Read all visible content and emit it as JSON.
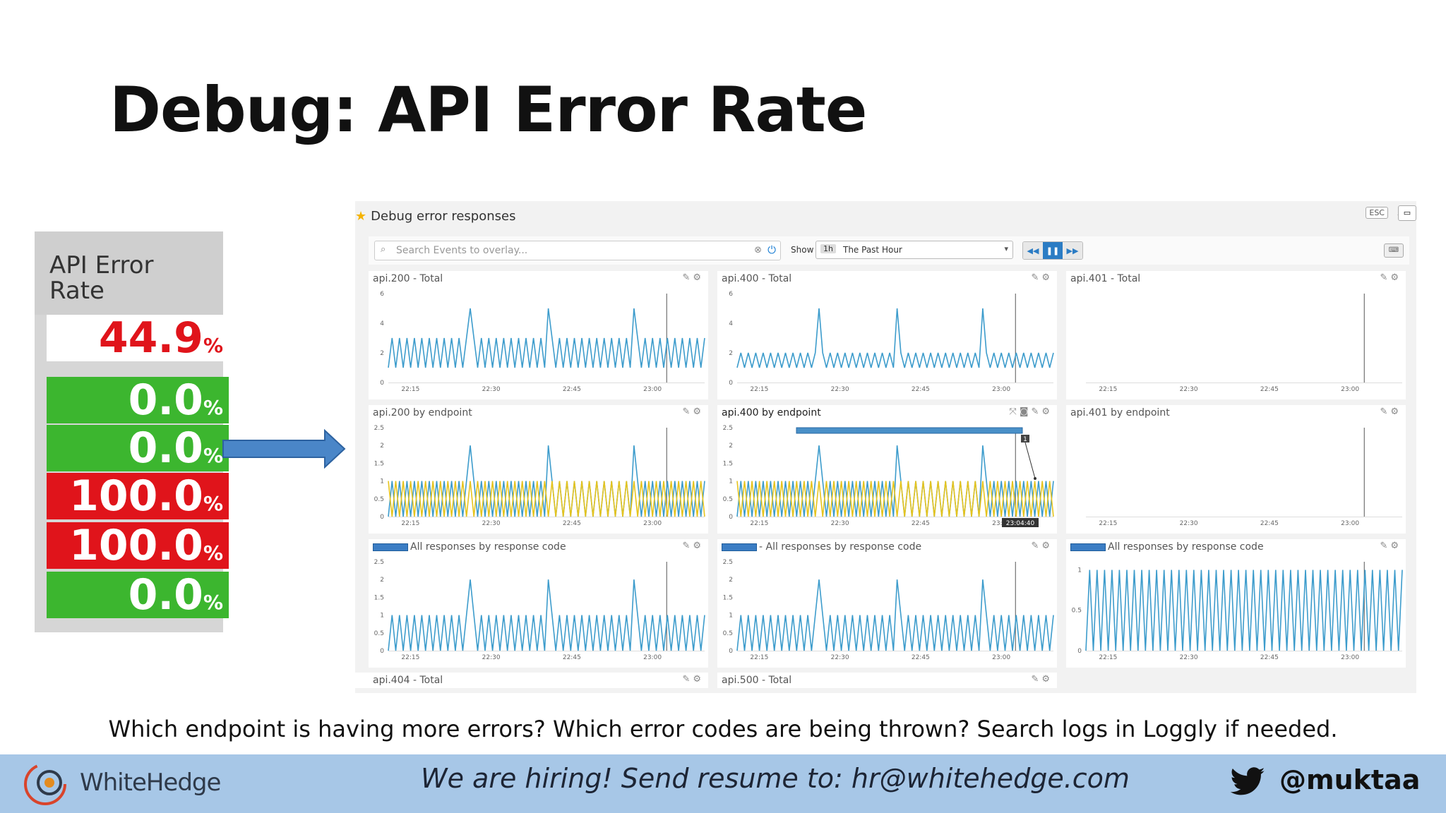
{
  "slide": {
    "title": "Debug: API Error Rate",
    "caption": "Which endpoint is having more errors? Which error codes are being thrown? Search logs in Loggly if needed."
  },
  "error_panel": {
    "heading": "API Error Rate",
    "tiles": [
      {
        "value": "44.9",
        "unit": "%",
        "style": "white"
      },
      {
        "value": "0.0",
        "unit": "%",
        "style": "green"
      },
      {
        "value": "0.0",
        "unit": "%",
        "style": "green"
      },
      {
        "value": "100.0",
        "unit": "%",
        "style": "red"
      },
      {
        "value": "100.0",
        "unit": "%",
        "style": "red"
      },
      {
        "value": "0.0",
        "unit": "%",
        "style": "green"
      }
    ],
    "colors": {
      "green": "#3cb62f",
      "red": "#e0141b"
    }
  },
  "dashboard": {
    "title": "Debug error responses",
    "esc_label": "ESC",
    "separator": "/",
    "search_placeholder": "Search Events to overlay...",
    "show_label": "Show",
    "range_short": "1h",
    "range_label": "The Past Hour",
    "panels": [
      {
        "title": "api.200 - Total"
      },
      {
        "title": "api.400 - Total"
      },
      {
        "title": "api.401 - Total"
      },
      {
        "title": "api.200 by endpoint"
      },
      {
        "title": "api.400 by endpoint"
      },
      {
        "title": "api.401 by endpoint"
      },
      {
        "title": "All responses by response code"
      },
      {
        "title": "- All responses by response code"
      },
      {
        "title": "All responses by response code"
      },
      {
        "title": "api.404 - Total"
      },
      {
        "title": "api.500 - Total"
      }
    ],
    "x_ticks": [
      "22:15",
      "22:30",
      "22:45",
      "23:00"
    ],
    "tooltip": {
      "badge": "1",
      "time": "23:04:40"
    },
    "colors": {
      "series_blue": "#3d9ccc",
      "series_yellow": "#e6c41d",
      "series_purple": "#8a6fc9"
    }
  },
  "chart_data": [
    {
      "type": "line",
      "title": "api.200 - Total",
      "y_ticks": [
        "0",
        "2",
        "4",
        "6"
      ],
      "x_ticks": [
        "22:15",
        "22:30",
        "22:45",
        "23:00"
      ],
      "ylim": [
        0,
        6
      ],
      "series": [
        {
          "values": [
            1,
            3,
            1,
            3,
            1,
            3,
            1,
            3,
            1,
            3,
            1,
            3,
            1,
            3,
            1,
            3,
            1,
            3,
            1,
            3,
            1,
            3,
            5,
            3,
            1,
            3,
            1,
            3,
            1,
            3,
            1,
            3,
            1,
            3,
            1,
            3,
            1,
            3,
            1,
            3,
            1,
            3,
            1,
            5,
            3,
            1,
            3,
            1,
            3,
            1,
            3,
            1,
            3,
            1,
            3,
            1,
            3,
            1,
            3,
            1,
            3,
            1,
            3,
            1,
            3,
            1,
            5,
            3,
            1,
            3,
            1,
            3,
            1,
            3,
            1,
            3,
            1,
            3,
            1,
            3,
            1,
            3,
            1,
            3,
            1,
            3
          ]
        }
      ]
    },
    {
      "type": "line",
      "title": "api.400 - Total",
      "y_ticks": [
        "0",
        "2",
        "4",
        "6"
      ],
      "x_ticks": [
        "22:15",
        "22:30",
        "22:45",
        "23:00"
      ],
      "ylim": [
        0,
        6
      ],
      "series": [
        {
          "values": [
            1,
            2,
            1,
            2,
            1,
            2,
            1,
            2,
            1,
            2,
            1,
            2,
            1,
            2,
            1,
            2,
            1,
            2,
            1,
            2,
            1,
            2,
            5,
            2,
            1,
            2,
            1,
            2,
            1,
            2,
            1,
            2,
            1,
            2,
            1,
            2,
            1,
            2,
            1,
            2,
            1,
            2,
            1,
            5,
            2,
            1,
            2,
            1,
            2,
            1,
            2,
            1,
            2,
            1,
            2,
            1,
            2,
            1,
            2,
            1,
            2,
            1,
            2,
            1,
            2,
            1,
            5,
            2,
            1,
            2,
            1,
            2,
            1,
            2,
            1,
            2,
            1,
            2,
            1,
            2,
            1,
            2,
            1,
            2,
            1,
            2
          ]
        }
      ]
    },
    {
      "type": "line",
      "title": "api.401 - Total",
      "x_ticks": [
        "22:15",
        "22:30",
        "22:45",
        "23:00"
      ],
      "series": []
    },
    {
      "type": "line",
      "title": "api.200 by endpoint",
      "y_ticks": [
        "0",
        "0.5",
        "1",
        "1.5",
        "2",
        "2.5"
      ],
      "x_ticks": [
        "22:15",
        "22:30",
        "22:45",
        "23:00"
      ],
      "ylim": [
        0,
        2.5
      ],
      "series": [
        {
          "values": [
            0,
            1,
            0,
            1,
            0,
            1,
            0,
            1,
            0,
            1,
            0,
            1,
            0,
            1,
            0,
            1,
            0,
            1,
            0,
            1,
            0,
            1,
            2,
            1,
            0,
            1,
            0,
            1,
            0,
            1,
            0,
            1,
            0,
            1,
            0,
            1,
            0,
            1,
            0,
            1,
            0,
            1,
            0,
            2,
            1,
            0,
            1,
            0,
            1,
            0,
            1,
            0,
            1,
            0,
            1,
            0,
            1,
            0,
            1,
            0,
            1,
            0,
            1,
            0,
            1,
            0,
            2,
            1,
            0,
            1,
            0,
            1,
            0,
            1,
            0,
            1,
            0,
            1,
            0,
            1,
            0,
            1,
            0,
            1,
            0,
            1
          ]
        },
        {
          "values": [
            1,
            0,
            1,
            0,
            1,
            0,
            1,
            0,
            1,
            0,
            1,
            0,
            1,
            0,
            1,
            0,
            1,
            0,
            1,
            0,
            1,
            0,
            1,
            0,
            1,
            0,
            1,
            0,
            1,
            0,
            1,
            0,
            1,
            0,
            1,
            0,
            1,
            0,
            1,
            0,
            1,
            0,
            1,
            0,
            1,
            0,
            1,
            0,
            1,
            0,
            1,
            0,
            1,
            0,
            1,
            0,
            1,
            0,
            1,
            0,
            1,
            0,
            1,
            0,
            1,
            0,
            1,
            0,
            1,
            0,
            1,
            0,
            1,
            0,
            1,
            0,
            1,
            0,
            1,
            0,
            1,
            0,
            1,
            0,
            1,
            0
          ]
        }
      ]
    },
    {
      "type": "line",
      "title": "api.400 by endpoint",
      "y_ticks": [
        "0",
        "0.5",
        "1",
        "1.5",
        "2",
        "2.5"
      ],
      "x_ticks": [
        "22:15",
        "22:30",
        "22:45",
        "23:00"
      ],
      "ylim": [
        0,
        2.5
      ],
      "series": [
        {
          "values": [
            0,
            1,
            0,
            1,
            0,
            1,
            0,
            1,
            0,
            1,
            0,
            1,
            0,
            1,
            0,
            1,
            0,
            1,
            0,
            1,
            0,
            1,
            2,
            1,
            0,
            1,
            0,
            1,
            0,
            1,
            0,
            1,
            0,
            1,
            0,
            1,
            0,
            1,
            0,
            1,
            0,
            1,
            0,
            2,
            1,
            0,
            1,
            0,
            1,
            0,
            1,
            0,
            1,
            0,
            1,
            0,
            1,
            0,
            1,
            0,
            1,
            0,
            1,
            0,
            1,
            0,
            2,
            1,
            0,
            1,
            0,
            1,
            0,
            1,
            0,
            1,
            0,
            1,
            0,
            1,
            0,
            1,
            0,
            1,
            0,
            1
          ]
        },
        {
          "values": [
            1,
            0,
            1,
            0,
            1,
            0,
            1,
            0,
            1,
            0,
            1,
            0,
            1,
            0,
            1,
            0,
            1,
            0,
            1,
            0,
            1,
            0,
            1,
            0,
            1,
            0,
            1,
            0,
            1,
            0,
            1,
            0,
            1,
            0,
            1,
            0,
            1,
            0,
            1,
            0,
            1,
            0,
            1,
            0,
            1,
            0,
            1,
            0,
            1,
            0,
            1,
            0,
            1,
            0,
            1,
            0,
            1,
            0,
            1,
            0,
            1,
            0,
            1,
            0,
            1,
            0,
            1,
            0,
            1,
            0,
            1,
            0,
            1,
            0,
            1,
            0,
            1,
            0,
            1,
            0,
            1,
            0,
            1,
            0,
            1,
            0
          ]
        }
      ]
    },
    {
      "type": "line",
      "title": "api.401 by endpoint",
      "x_ticks": [
        "22:15",
        "22:30",
        "22:45",
        "23:00"
      ],
      "series": []
    },
    {
      "type": "line",
      "title": "All responses by response code",
      "y_ticks": [
        "0",
        "0.5",
        "1",
        "1.5",
        "2",
        "2.5"
      ],
      "x_ticks": [
        "22:15",
        "22:30",
        "22:45",
        "23:00"
      ],
      "ylim": [
        0,
        2.5
      ],
      "series": [
        {
          "values": [
            0,
            1,
            0,
            1,
            0,
            1,
            0,
            1,
            0,
            1,
            0,
            1,
            0,
            1,
            0,
            1,
            0,
            1,
            0,
            1,
            0,
            1,
            2,
            1,
            0,
            1,
            0,
            1,
            0,
            1,
            0,
            1,
            0,
            1,
            0,
            1,
            0,
            1,
            0,
            1,
            0,
            1,
            0,
            2,
            1,
            0,
            1,
            0,
            1,
            0,
            1,
            0,
            1,
            0,
            1,
            0,
            1,
            0,
            1,
            0,
            1,
            0,
            1,
            0,
            1,
            0,
            2,
            1,
            0,
            1,
            0,
            1,
            0,
            1,
            0,
            1,
            0,
            1,
            0,
            1,
            0,
            1,
            0,
            1,
            0,
            1
          ]
        }
      ]
    },
    {
      "type": "line",
      "title": "- All responses by response code",
      "y_ticks": [
        "0",
        "0.5",
        "1",
        "1.5",
        "2",
        "2.5"
      ],
      "x_ticks": [
        "22:15",
        "22:30",
        "22:45",
        "23:00"
      ],
      "ylim": [
        0,
        2.5
      ],
      "series": [
        {
          "values": [
            0,
            1,
            0,
            1,
            0,
            1,
            0,
            1,
            0,
            1,
            0,
            1,
            0,
            1,
            0,
            1,
            0,
            1,
            0,
            1,
            0,
            1,
            2,
            1,
            0,
            1,
            0,
            1,
            0,
            1,
            0,
            1,
            0,
            1,
            0,
            1,
            0,
            1,
            0,
            1,
            0,
            1,
            0,
            2,
            1,
            0,
            1,
            0,
            1,
            0,
            1,
            0,
            1,
            0,
            1,
            0,
            1,
            0,
            1,
            0,
            1,
            0,
            1,
            0,
            1,
            0,
            2,
            1,
            0,
            1,
            0,
            1,
            0,
            1,
            0,
            1,
            0,
            1,
            0,
            1,
            0,
            1,
            0,
            1,
            0,
            1
          ]
        }
      ]
    },
    {
      "type": "line",
      "title": "All responses by response code",
      "y_ticks": [
        "0",
        "0.5",
        "1"
      ],
      "x_ticks": [
        "22:15",
        "22:30",
        "22:45",
        "23:00"
      ],
      "ylim": [
        0,
        1.1
      ],
      "series": [
        {
          "values": [
            0,
            1,
            0,
            1,
            0,
            1,
            0,
            1,
            0,
            1,
            0,
            1,
            0,
            1,
            0,
            1,
            0,
            1,
            0,
            1,
            0,
            1,
            0,
            1,
            0,
            1,
            0,
            1,
            0,
            1,
            0,
            1,
            0,
            1,
            0,
            1,
            0,
            1,
            0,
            1,
            0,
            1,
            0,
            1,
            0,
            1,
            0,
            1,
            0,
            1,
            0,
            1,
            0,
            1,
            0,
            1,
            0,
            1,
            0,
            1,
            0,
            1,
            0,
            1,
            0,
            1,
            0,
            1,
            0,
            1,
            0,
            1,
            0,
            1,
            0,
            1,
            0,
            1,
            0,
            1,
            0,
            1,
            0,
            1,
            0,
            1
          ]
        }
      ]
    }
  ],
  "footer": {
    "brand": "WhiteHedge",
    "hiring": "We are hiring! Send resume to: hr@whitehedge.com",
    "handle": "@muktaa"
  }
}
